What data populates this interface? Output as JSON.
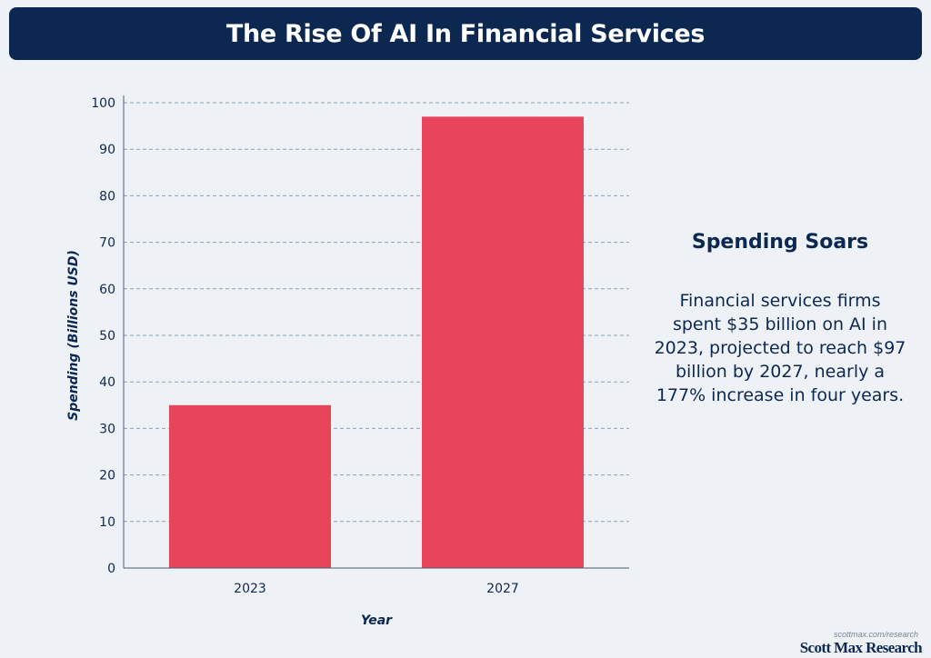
{
  "header": {
    "title": "The Rise Of AI In Financial Services"
  },
  "chart_data": {
    "type": "bar",
    "title": "The Rise Of AI In Financial Services",
    "categories": [
      "2023",
      "2027"
    ],
    "values": [
      35,
      97
    ],
    "xlabel": "Year",
    "ylabel": "Spending (Billions USD)",
    "ylim": [
      0,
      100
    ],
    "yticks": [
      0,
      10,
      20,
      30,
      40,
      50,
      60,
      70,
      80,
      90,
      100
    ],
    "grid": true,
    "bar_color": "#e8445b"
  },
  "sidebar": {
    "heading": "Spending Soars",
    "text": "Financial services firms spent $35 billion on AI in 2023, projected to reach $97 billion by 2027, nearly a 177% increase in four years."
  },
  "footer": {
    "url": "scottmax.com/research",
    "brand": "Scott Max Research"
  },
  "colors": {
    "navy": "#0d2850",
    "bar": "#e8445b",
    "background": "#eef2f7",
    "grid": "#8fa0b5"
  }
}
